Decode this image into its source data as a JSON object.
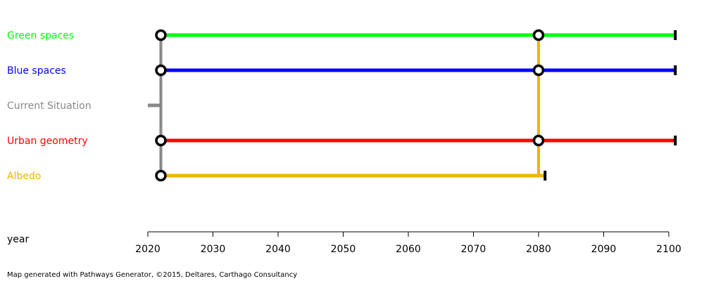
{
  "chart_data": {
    "type": "pathways",
    "xlabel": "year",
    "xlim": [
      2020,
      2100
    ],
    "x_ticks": [
      2020,
      2030,
      2040,
      2050,
      2060,
      2070,
      2080,
      2090,
      2100
    ],
    "series": [
      {
        "name": "Green spaces",
        "color": "#00ff00",
        "start": 2022,
        "end": 2101,
        "transfers": [
          2080
        ]
      },
      {
        "name": "Blue spaces",
        "color": "#0000ff",
        "start": 2022,
        "end": 2101,
        "transfers": [
          2080
        ]
      },
      {
        "name": "Current Situation",
        "color": "#888888",
        "start": 2020,
        "end": 2022,
        "transfers": []
      },
      {
        "name": "Urban geometry",
        "color": "#ff0000",
        "start": 2022,
        "end": 2101,
        "transfers": [
          2080
        ]
      },
      {
        "name": "Albedo",
        "color": "#f0b400",
        "start": 2022,
        "end": 2081,
        "transfers": []
      }
    ],
    "connectors": [
      {
        "from": "Current Situation",
        "at": 2022,
        "to": [
          "Green spaces",
          "Blue spaces",
          "Urban geometry",
          "Albedo"
        ],
        "color": "#888888"
      },
      {
        "from": "Albedo",
        "at": 2080,
        "to": [
          "Green spaces",
          "Blue spaces",
          "Urban geometry"
        ],
        "color": "#f0b400"
      }
    ]
  },
  "footer": "Map generated with Pathways Generator, ©2015, Deltares, Carthago Consultancy"
}
